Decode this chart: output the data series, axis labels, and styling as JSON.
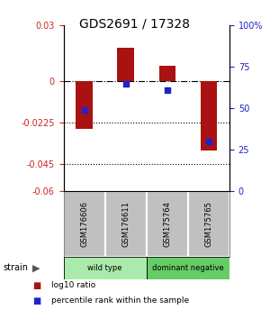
{
  "title": "GDS2691 / 17328",
  "samples": [
    "GSM176606",
    "GSM176611",
    "GSM175764",
    "GSM175765"
  ],
  "log10_ratio": [
    -0.026,
    0.018,
    0.008,
    -0.038
  ],
  "percentile_rank": [
    49,
    65,
    61,
    30
  ],
  "bar_color": "#AA1111",
  "point_color": "#2222CC",
  "left_ylim": [
    -0.06,
    0.03
  ],
  "right_ylim": [
    0,
    100
  ],
  "left_yticks": [
    0.03,
    0,
    -0.0225,
    -0.045,
    -0.06
  ],
  "left_ytick_labels": [
    "0.03",
    "0",
    "-0.0225",
    "-0.045",
    "-0.06"
  ],
  "right_yticks": [
    100,
    75,
    50,
    25,
    0
  ],
  "right_ytick_labels": [
    "100%",
    "75",
    "50",
    "25",
    "0"
  ],
  "hline_0225": -0.0225,
  "hline_045": -0.045,
  "groups": [
    {
      "label": "wild type",
      "indices": [
        0,
        1
      ],
      "color": "#AAEAAA"
    },
    {
      "label": "dominant negative",
      "indices": [
        2,
        3
      ],
      "color": "#66CC66"
    }
  ],
  "strain_label": "strain",
  "legend_items": [
    {
      "color": "#AA1111",
      "label": "log10 ratio"
    },
    {
      "color": "#2222CC",
      "label": "percentile rank within the sample"
    }
  ],
  "bg_color": "#FFFFFF",
  "plot_bg": "#FFFFFF",
  "left_tick_color": "#CC2222",
  "right_tick_color": "#2222CC",
  "label_bg": "#C0C0C0",
  "label_border": "#888888"
}
